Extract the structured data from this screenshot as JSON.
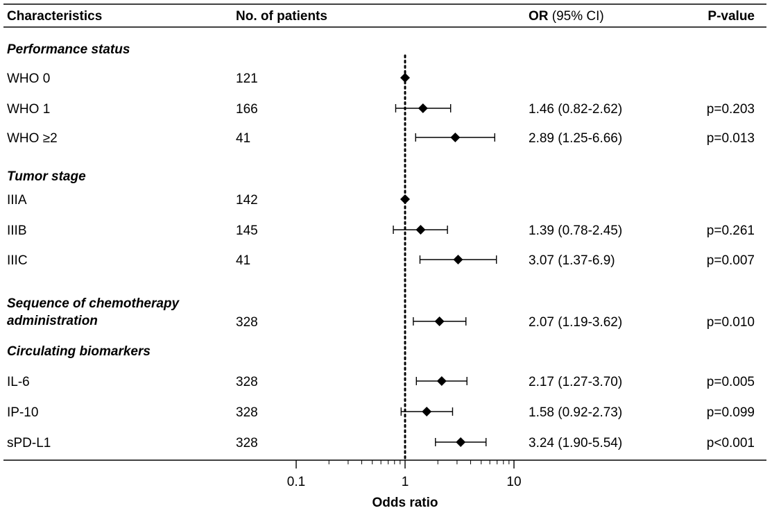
{
  "chart_data": {
    "type": "forest",
    "headers": {
      "characteristics": "Characteristics",
      "patients": "No. of patients",
      "or_bold": "OR",
      "or_rest": " (95%  CI)",
      "pvalue": "P-value"
    },
    "x_axis": {
      "label": "Odds ratio",
      "scale": "log",
      "ticks": [
        0.1,
        1,
        10
      ],
      "tick_labels": [
        "0.1",
        "1",
        "10"
      ],
      "xlim": [
        0.1,
        10
      ],
      "reference_line": 1
    },
    "rows": [
      {
        "kind": "section",
        "label": "Performance status"
      },
      {
        "kind": "item",
        "label": "WHO 0",
        "n": "121",
        "or": 1,
        "ci": [
          1,
          1
        ],
        "or_text": "",
        "p": ""
      },
      {
        "kind": "item",
        "label": "WHO 1",
        "n": "166",
        "or": 1.46,
        "ci": [
          0.82,
          2.62
        ],
        "or_text": "1.46 (0.82-2.62)",
        "p": "p=0.203"
      },
      {
        "kind": "item",
        "label": "WHO ≥2",
        "n": "41",
        "or": 2.89,
        "ci": [
          1.25,
          6.66
        ],
        "or_text": "2.89 (1.25-6.66)",
        "p": "p=0.013"
      },
      {
        "kind": "section",
        "label": "Tumor stage"
      },
      {
        "kind": "item",
        "label": "IIIA",
        "n": "142",
        "or": 1,
        "ci": [
          1,
          1
        ],
        "or_text": "",
        "p": ""
      },
      {
        "kind": "item",
        "label": "IIIB",
        "n": "145",
        "or": 1.39,
        "ci": [
          0.78,
          2.45
        ],
        "or_text": "1.39 (0.78-2.45)",
        "p": "p=0.261"
      },
      {
        "kind": "item",
        "label": "IIIC",
        "n": "41",
        "or": 3.07,
        "ci": [
          1.37,
          6.9
        ],
        "or_text": "3.07 (1.37-6.9)",
        "p": "p=0.007"
      },
      {
        "kind": "section_item",
        "label": "Sequence of chemotherapy",
        "label2": "administration",
        "n": "328",
        "or": 2.07,
        "ci": [
          1.19,
          3.62
        ],
        "or_text": "2.07 (1.19-3.62)",
        "p": "p=0.010"
      },
      {
        "kind": "section",
        "label": "Circulating biomarkers"
      },
      {
        "kind": "item",
        "label": "IL-6",
        "n": "328",
        "or": 2.17,
        "ci": [
          1.27,
          3.7
        ],
        "or_text": "2.17 (1.27-3.70)",
        "p": "p=0.005"
      },
      {
        "kind": "item",
        "label": "IP-10",
        "n": "328",
        "or": 1.58,
        "ci": [
          0.92,
          2.73
        ],
        "or_text": "1.58 (0.92-2.73)",
        "p": "p=0.099"
      },
      {
        "kind": "item",
        "label": "sPD-L1",
        "n": "328",
        "or": 3.24,
        "ci": [
          1.9,
          5.54
        ],
        "or_text": "3.24 (1.90-5.54)",
        "p": "p<0.001"
      }
    ]
  }
}
